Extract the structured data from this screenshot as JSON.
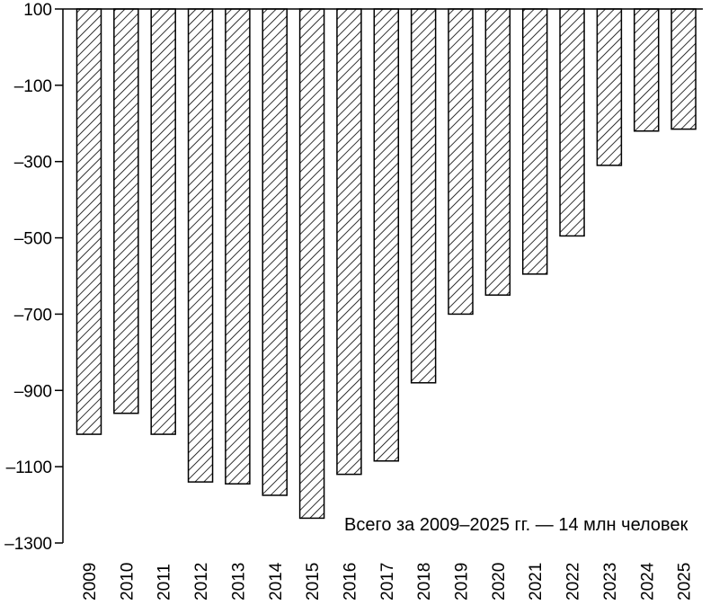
{
  "chart_data": {
    "type": "bar",
    "categories": [
      "2009",
      "2010",
      "2011",
      "2012",
      "2013",
      "2014",
      "2015",
      "2016",
      "2017",
      "2018",
      "2019",
      "2020",
      "2021",
      "2022",
      "2023",
      "2024",
      "2025"
    ],
    "values": [
      -1015,
      -960,
      -1015,
      -1140,
      -1145,
      -1175,
      -1235,
      -1120,
      -1085,
      -880,
      -700,
      -650,
      -595,
      -495,
      -310,
      -220,
      -215
    ],
    "ylim": [
      -1300,
      100
    ],
    "yticks": [
      100,
      -100,
      -300,
      -500,
      -700,
      -900,
      -1100,
      -1300
    ],
    "ytick_labels": [
      "100",
      "–100",
      "–300",
      "–500",
      "–700",
      "–900",
      "–1100",
      "–1300"
    ],
    "title": "",
    "xlabel": "",
    "ylabel": "",
    "grid": false,
    "bar_fill": "hatched",
    "annotation": "Всего за 2009–2025 гг. — 14 млн человек",
    "colors": {
      "bar_stroke": "#000000",
      "hatch": "#000000",
      "axis": "#000000"
    }
  }
}
